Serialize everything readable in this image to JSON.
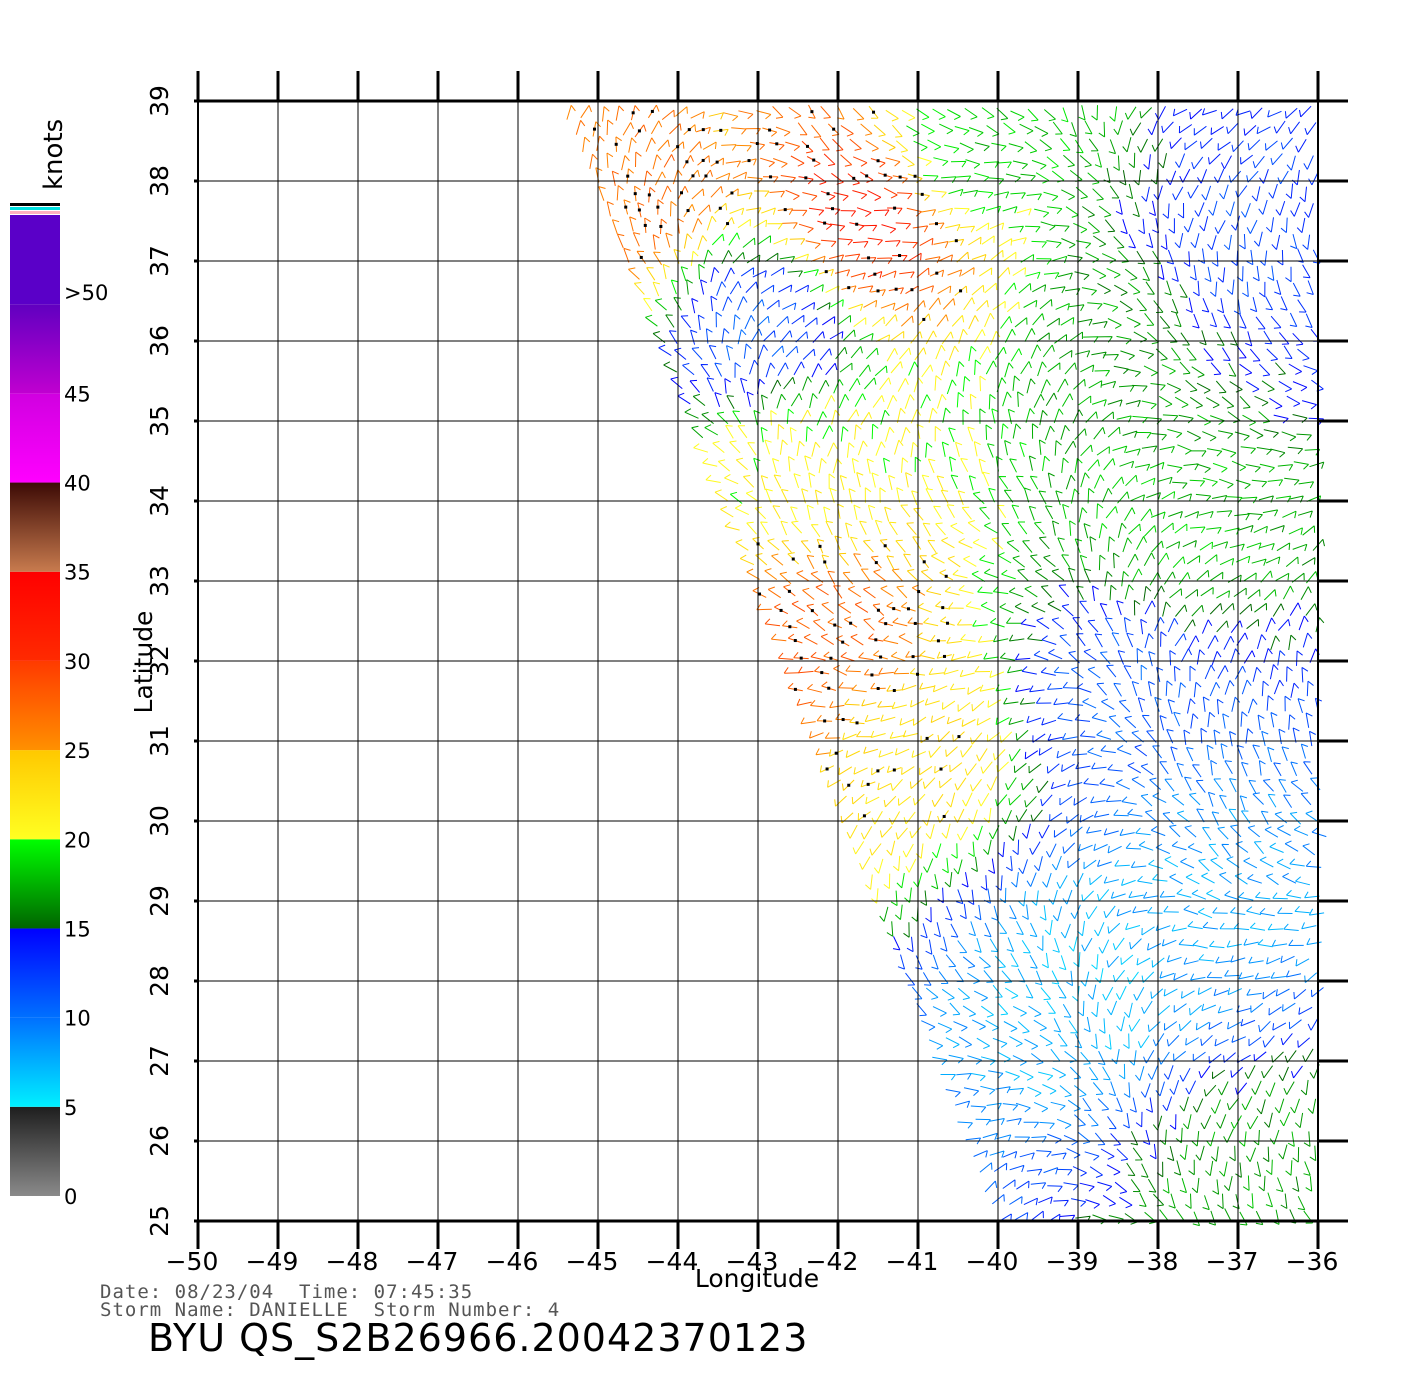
{
  "map": {
    "x_axis": {
      "label": "Longitude",
      "range": [
        -50,
        -36
      ],
      "ticks": [
        -50,
        -49,
        -48,
        -47,
        -46,
        -45,
        -44,
        -43,
        -42,
        -41,
        -40,
        -39,
        -38,
        -37,
        -36
      ],
      "tick_labels": [
        "−50",
        "−49",
        "−48",
        "−47",
        "−46",
        "−45",
        "−44",
        "−43",
        "−42",
        "−41",
        "−40",
        "−39",
        "−38",
        "−37",
        "−36"
      ]
    },
    "y_axis": {
      "label": "Latitude",
      "range": [
        25,
        39
      ],
      "ticks": [
        25,
        26,
        27,
        28,
        29,
        30,
        31,
        32,
        33,
        34,
        35,
        36,
        37,
        38,
        39
      ],
      "tick_labels": [
        "25",
        "26",
        "27",
        "28",
        "29",
        "30",
        "31",
        "32",
        "33",
        "34",
        "35",
        "36",
        "37",
        "38",
        "39"
      ]
    },
    "grid": true,
    "swath": {
      "west_edge_top": [
        -45.5,
        39
      ],
      "west_edge_bottom": [
        -40,
        25
      ],
      "east_edge": -36
    }
  },
  "colorbar": {
    "unit_label": "knots",
    "bands": [
      {
        "label": "0",
        "from": 0,
        "to": 5,
        "colors": [
          "#8a8a8a",
          "#1e1e1e"
        ]
      },
      {
        "label": "5",
        "from": 5,
        "to": 10,
        "colors": [
          "#00f0ff",
          "#0070ff"
        ]
      },
      {
        "label": "10",
        "from": 10,
        "to": 15,
        "colors": [
          "#0070ff",
          "#0000ff"
        ]
      },
      {
        "label": "15",
        "from": 15,
        "to": 20,
        "colors": [
          "#006400",
          "#00ff00"
        ]
      },
      {
        "label": "20",
        "from": 20,
        "to": 25,
        "colors": [
          "#ffff22",
          "#ffc800"
        ]
      },
      {
        "label": "25",
        "from": 25,
        "to": 30,
        "colors": [
          "#ff9000",
          "#ff3a00"
        ]
      },
      {
        "label": "30",
        "from": 30,
        "to": 35,
        "colors": [
          "#ff2a00",
          "#ff0000"
        ]
      },
      {
        "label": "35",
        "from": 35,
        "to": 40,
        "colors": [
          "#c87b4e",
          "#3c0a05"
        ]
      },
      {
        "label": "40",
        "from": 40,
        "to": 45,
        "colors": [
          "#ff00ff",
          "#d000e0"
        ]
      },
      {
        "label": "45",
        "from": 45,
        "to": 50,
        "colors": [
          "#c000d0",
          "#6000c0"
        ]
      },
      {
        "label": ">50",
        "from": 50,
        "to": 55,
        "colors": [
          "#5a00c8",
          "#5a00c8"
        ]
      }
    ],
    "top_stripe_colors": [
      "#ffb0c0",
      "#00e0e0",
      "#000000"
    ],
    "tick_labels": [
      "0",
      "5",
      "10",
      "15",
      "20",
      "25",
      "30",
      "35",
      "40",
      "45",
      ">50"
    ]
  },
  "wind_regions": [
    {
      "lon": -41.6,
      "lat": 37.6,
      "speed": 32
    },
    {
      "lon": -42.2,
      "lat": 32.2,
      "speed": 28
    },
    {
      "lon": -44.5,
      "lat": 37.8,
      "speed": 27
    },
    {
      "lon": -42.5,
      "lat": 34.5,
      "speed": 21
    },
    {
      "lon": -41.0,
      "lat": 31.0,
      "speed": 23
    },
    {
      "lon": -37.8,
      "lat": 33.8,
      "speed": 18
    },
    {
      "lon": -38.2,
      "lat": 36.2,
      "speed": 17
    },
    {
      "lon": -40.5,
      "lat": 38.4,
      "speed": 18
    },
    {
      "lon": -39.0,
      "lat": 28.0,
      "speed": 7
    },
    {
      "lon": -37.5,
      "lat": 29.2,
      "speed": 8
    },
    {
      "lon": -36.8,
      "lat": 25.5,
      "speed": 17
    },
    {
      "lon": -37.0,
      "lat": 37.0,
      "speed": 12
    },
    {
      "lon": -38.5,
      "lat": 31.5,
      "speed": 11
    },
    {
      "lon": -43.0,
      "lat": 36.2,
      "speed": 11
    }
  ],
  "info": {
    "date_line": "Date: 08/23/04  Time: 07:45:35",
    "storm_line": "Storm Name: DANIELLE  Storm Number: 4",
    "file_id": "BYU QS_S2B26966.20042370123"
  }
}
